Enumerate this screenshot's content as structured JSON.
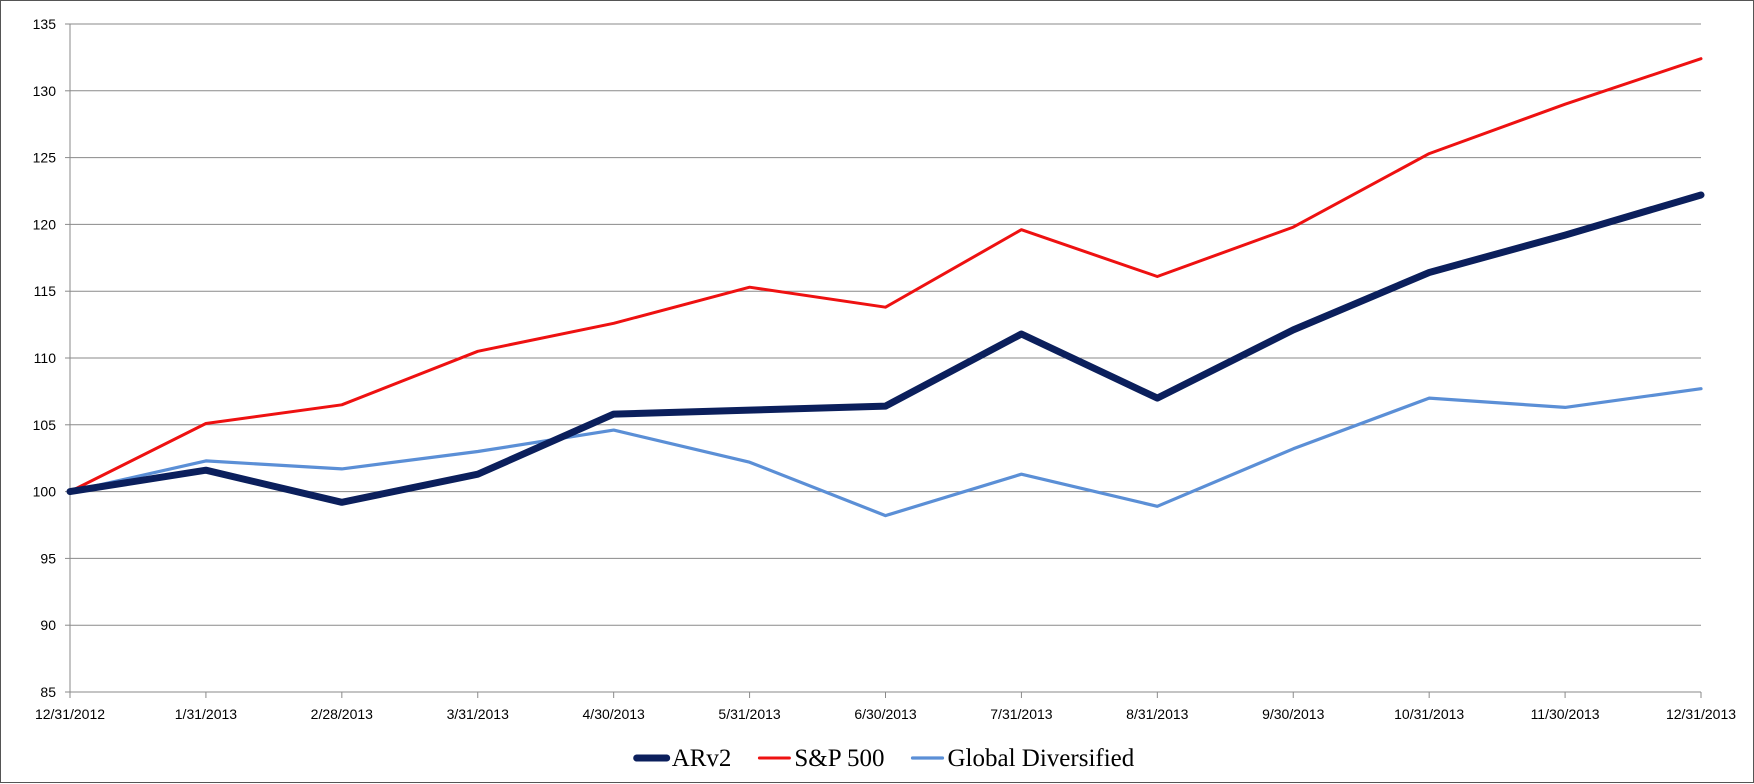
{
  "chart_data": {
    "type": "line",
    "title": "",
    "xlabel": "",
    "ylabel": "",
    "categories": [
      "12/31/2012",
      "1/31/2013",
      "2/28/2013",
      "3/31/2013",
      "4/30/2013",
      "5/31/2013",
      "6/30/2013",
      "7/31/2013",
      "8/31/2013",
      "9/30/2013",
      "10/31/2013",
      "11/30/2013",
      "12/31/2013"
    ],
    "ylim": [
      85,
      135
    ],
    "yticks": [
      85,
      90,
      95,
      100,
      105,
      110,
      115,
      120,
      125,
      130,
      135
    ],
    "grid": true,
    "legend_position": "bottom",
    "series": [
      {
        "name": "ARv2",
        "color": "#0b1f5c",
        "values": [
          100,
          101.6,
          99.2,
          101.3,
          105.8,
          106.1,
          106.4,
          111.8,
          107.0,
          112.1,
          116.4,
          119.2,
          122.2
        ]
      },
      {
        "name": "S&P 500",
        "color": "#ee1111",
        "values": [
          100,
          105.1,
          106.5,
          110.5,
          112.6,
          115.3,
          113.8,
          119.6,
          116.1,
          119.8,
          125.3,
          129.0,
          132.4
        ]
      },
      {
        "name": "Global Diversified",
        "color": "#5b8fd6",
        "values": [
          100,
          102.3,
          101.7,
          103.0,
          104.6,
          102.2,
          98.2,
          101.3,
          98.9,
          103.2,
          107.0,
          106.3,
          107.7
        ]
      }
    ]
  }
}
